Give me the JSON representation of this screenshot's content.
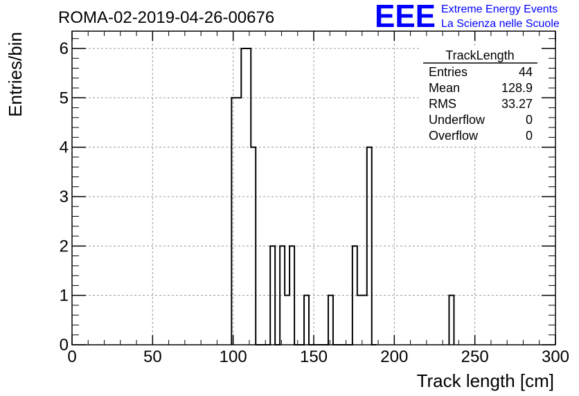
{
  "header": {
    "run_title": "ROMA-02-2019-04-26-00676",
    "logo_text": "EEE",
    "logo_line1": "Extreme Energy Events",
    "logo_line2": "La Scienza nelle Scuole",
    "brand_color": "#0000ff"
  },
  "stats": {
    "title": "TrackLength",
    "rows": [
      {
        "label": "Entries",
        "value": "44"
      },
      {
        "label": "Mean",
        "value": "128.9"
      },
      {
        "label": "RMS",
        "value": "33.27"
      },
      {
        "label": "Underflow",
        "value": "0"
      },
      {
        "label": "Overflow",
        "value": "0"
      }
    ]
  },
  "chart_data": {
    "type": "bar",
    "histogram": "step",
    "xlabel": "Track length [cm]",
    "ylabel": "Entries/bin",
    "xlim": [
      0,
      300
    ],
    "ylim": [
      0,
      6.35
    ],
    "x_ticks": [
      "0",
      "50",
      "100",
      "150",
      "200",
      "250",
      "300"
    ],
    "y_ticks": [
      "0",
      "1",
      "2",
      "3",
      "4",
      "5",
      "6"
    ],
    "grid": true,
    "bin_width": 3,
    "bins": [
      {
        "x": 99,
        "y": 5
      },
      {
        "x": 102,
        "y": 5
      },
      {
        "x": 105,
        "y": 6
      },
      {
        "x": 108,
        "y": 6
      },
      {
        "x": 111,
        "y": 4
      },
      {
        "x": 114,
        "y": 0
      },
      {
        "x": 117,
        "y": 0
      },
      {
        "x": 120,
        "y": 0
      },
      {
        "x": 123,
        "y": 2
      },
      {
        "x": 126,
        "y": 0
      },
      {
        "x": 129,
        "y": 2
      },
      {
        "x": 132,
        "y": 1
      },
      {
        "x": 135,
        "y": 2
      },
      {
        "x": 138,
        "y": 0
      },
      {
        "x": 141,
        "y": 0
      },
      {
        "x": 144,
        "y": 1
      },
      {
        "x": 147,
        "y": 0
      },
      {
        "x": 150,
        "y": 0
      },
      {
        "x": 153,
        "y": 0
      },
      {
        "x": 156,
        "y": 0
      },
      {
        "x": 159,
        "y": 1
      },
      {
        "x": 162,
        "y": 0
      },
      {
        "x": 165,
        "y": 0
      },
      {
        "x": 168,
        "y": 0
      },
      {
        "x": 171,
        "y": 0
      },
      {
        "x": 174,
        "y": 2
      },
      {
        "x": 177,
        "y": 1
      },
      {
        "x": 180,
        "y": 1
      },
      {
        "x": 183,
        "y": 4
      },
      {
        "x": 186,
        "y": 0
      },
      {
        "x": 234,
        "y": 1
      }
    ]
  }
}
